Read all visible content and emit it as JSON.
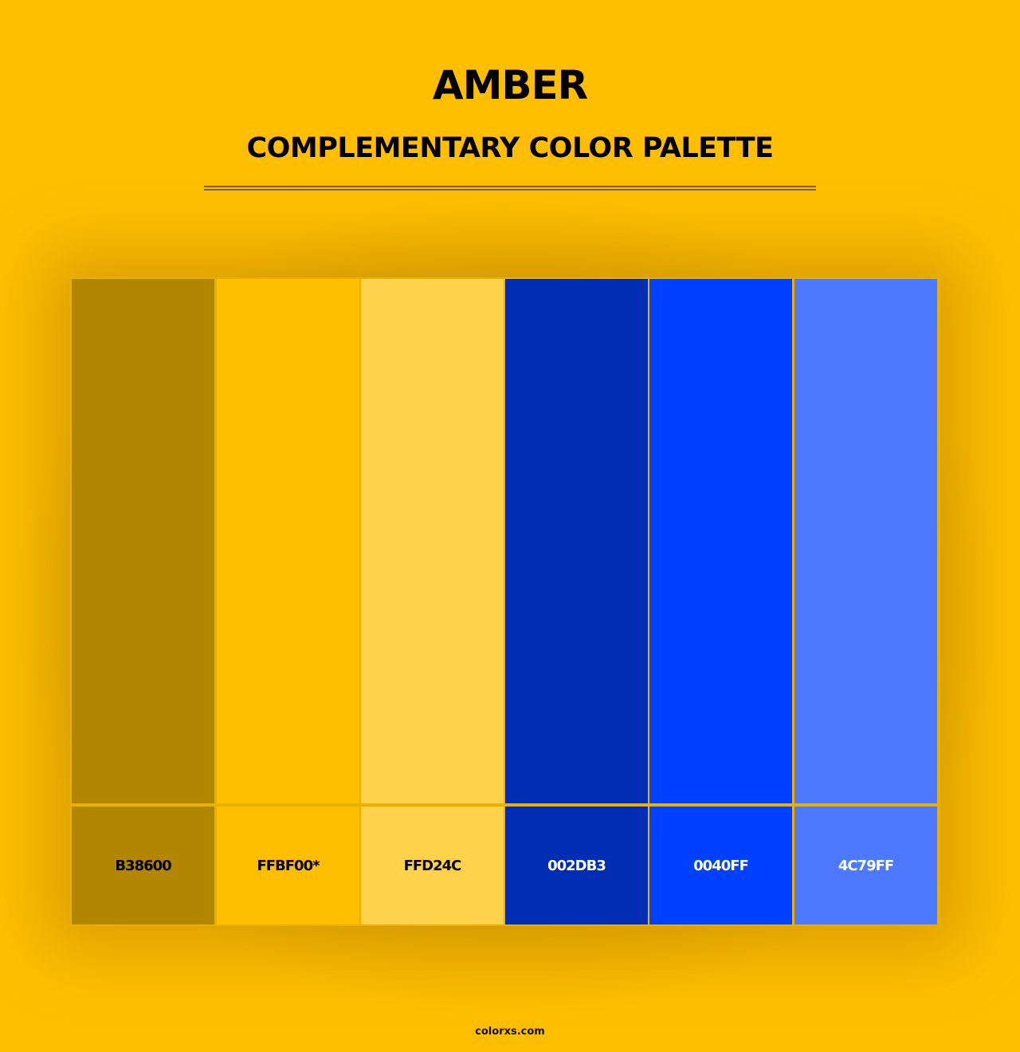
{
  "title": "AMBER",
  "subtitle": "COMPLEMENTARY COLOR PALETTE",
  "swatches": [
    {
      "hex": "#B38600",
      "label": "B38600",
      "text_color": "#000000"
    },
    {
      "hex": "#FFBF00",
      "label": "FFBF00*",
      "text_color": "#000000"
    },
    {
      "hex": "#FFD24C",
      "label": "FFD24C",
      "text_color": "#000000"
    },
    {
      "hex": "#002DB3",
      "label": "002DB3",
      "text_color": "#FFFFFF"
    },
    {
      "hex": "#0040FF",
      "label": "0040FF",
      "text_color": "#FFFFFF"
    },
    {
      "hex": "#4C79FF",
      "label": "4C79FF",
      "text_color": "#FFFFFF"
    }
  ],
  "footer": "colorxs.com"
}
